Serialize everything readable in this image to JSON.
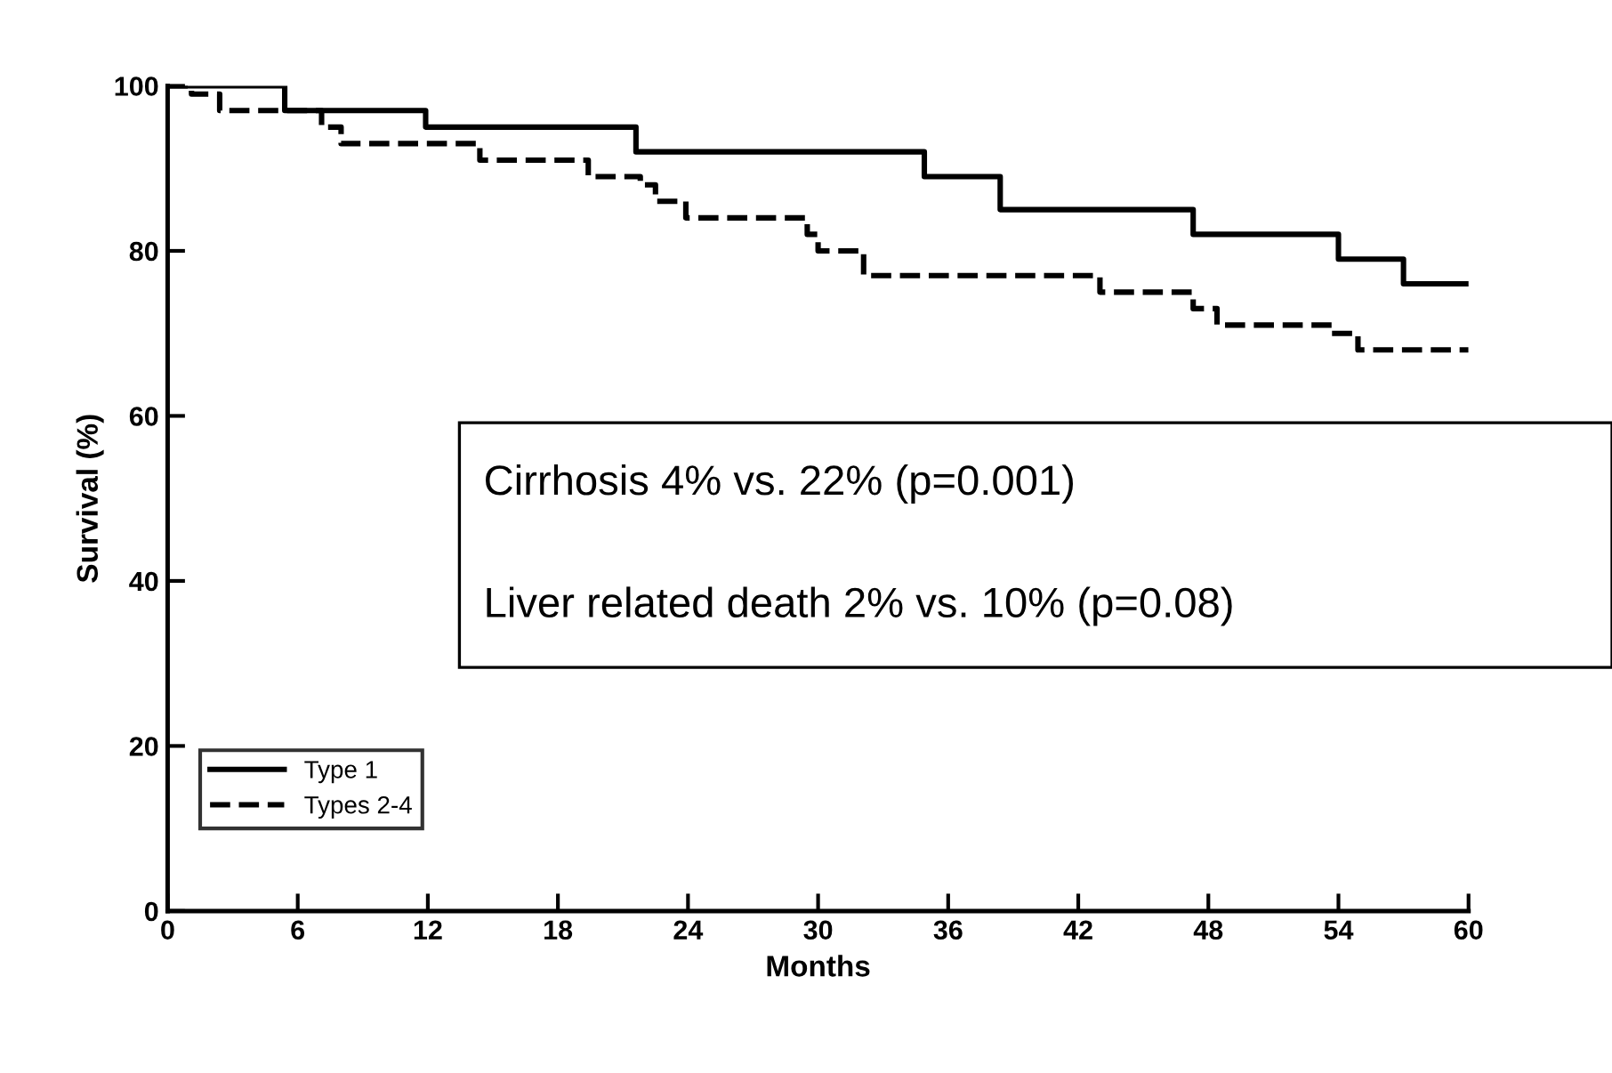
{
  "chart_data": {
    "type": "step",
    "xlabel": "Months",
    "ylabel": "Survival (%)",
    "xlim": [
      0,
      60
    ],
    "xticks": [
      0,
      6,
      12,
      18,
      24,
      30,
      36,
      42,
      48,
      54,
      60
    ],
    "ylim": [
      0,
      100
    ],
    "yticks": [
      0,
      20,
      40,
      60,
      80,
      100
    ],
    "grid": false,
    "legend": "bottom left",
    "marker": "none",
    "series": [
      {
        "name": "Type 1",
        "color": "#000000",
        "line_style": "solid",
        "x": [
          0,
          5.4,
          11.9,
          21.6,
          34.9,
          38.4,
          47.3,
          54,
          57,
          60
        ],
        "values": [
          100,
          97,
          95,
          92,
          89,
          85,
          82,
          79,
          76,
          76
        ]
      },
      {
        "name": "Types 2-4",
        "color": "#000000",
        "line_style": "dashed",
        "x": [
          0,
          1.1,
          2.4,
          7.1,
          8,
          14.4,
          19.4,
          21.8,
          22.5,
          23.9,
          29.5,
          30,
          32.1,
          43,
          47.3,
          48.4,
          53.7,
          54.9,
          60
        ],
        "values": [
          100,
          99,
          97,
          95,
          93,
          91,
          89,
          88,
          86,
          84,
          82,
          80,
          77,
          75,
          73,
          71,
          70,
          68,
          68
        ]
      }
    ],
    "annotations": [
      "Cirrhosis 4% vs. 22% (p=0.001)",
      "Liver related death 2% vs. 10% (p=0.08)"
    ]
  }
}
